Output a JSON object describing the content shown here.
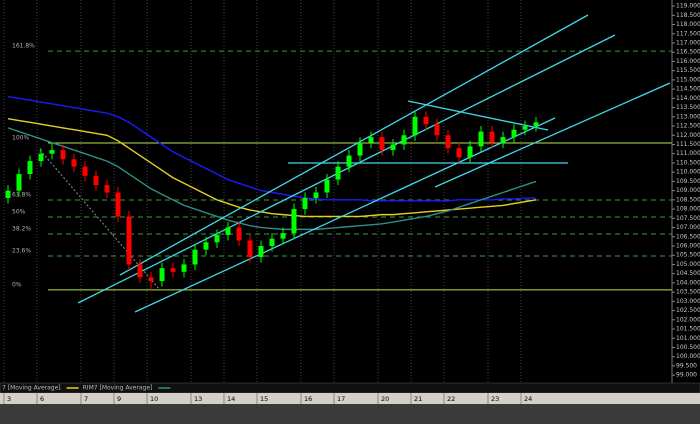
{
  "chart_data": {
    "type": "candlestick",
    "categories": [
      "3",
      null,
      null,
      "6",
      null,
      null,
      null,
      "7",
      null,
      null,
      "9",
      null,
      null,
      "10",
      null,
      null,
      null,
      "13",
      null,
      null,
      "14",
      null,
      null,
      "15",
      null,
      null,
      null,
      "16",
      null,
      null,
      "17",
      null,
      null,
      null,
      "20",
      null,
      null,
      "21",
      null,
      null,
      "22",
      null,
      null,
      null,
      "23",
      null,
      null,
      "24",
      null
    ],
    "open": [
      108.6,
      109.0,
      109.9,
      110.6,
      111.0,
      111.2,
      110.7,
      110.3,
      109.8,
      109.3,
      108.9,
      107.6,
      105.0,
      104.3,
      104.1,
      104.8,
      104.6,
      105.0,
      105.8,
      106.2,
      106.6,
      107.0,
      106.3,
      105.4,
      106.0,
      106.4,
      106.7,
      108.0,
      108.6,
      108.9,
      109.6,
      110.3,
      110.9,
      111.6,
      111.9,
      111.2,
      111.5,
      112.0,
      113.0,
      112.6,
      112.0,
      111.3,
      110.8,
      111.4,
      112.2,
      111.6,
      111.9,
      112.3,
      112.5
    ],
    "high": [
      109.3,
      110.2,
      110.9,
      111.3,
      111.58,
      111.5,
      111.0,
      110.6,
      110.1,
      109.6,
      109.2,
      107.9,
      105.3,
      104.6,
      105.1,
      105.1,
      105.3,
      106.1,
      106.5,
      106.9,
      107.3,
      107.3,
      106.6,
      106.3,
      106.7,
      107.0,
      108.3,
      108.9,
      109.2,
      109.9,
      110.6,
      111.2,
      111.9,
      112.2,
      112.2,
      111.8,
      112.3,
      113.3,
      113.3,
      112.9,
      112.3,
      111.6,
      111.7,
      112.5,
      112.5,
      112.2,
      112.6,
      112.8,
      113.0
    ],
    "low": [
      108.3,
      108.7,
      109.6,
      110.3,
      110.7,
      110.4,
      110.0,
      109.5,
      109.0,
      108.6,
      107.3,
      104.7,
      104.0,
      103.62,
      103.8,
      104.3,
      104.3,
      104.7,
      105.5,
      105.9,
      106.3,
      106.0,
      105.1,
      105.1,
      105.7,
      106.1,
      106.4,
      107.7,
      108.3,
      108.6,
      109.3,
      110.0,
      110.6,
      111.3,
      110.9,
      110.9,
      111.2,
      111.7,
      112.3,
      111.7,
      111.0,
      110.5,
      110.5,
      111.1,
      111.3,
      111.3,
      111.6,
      112.0,
      112.2
    ],
    "close": [
      109.0,
      109.9,
      110.6,
      111.0,
      111.2,
      110.7,
      110.3,
      109.8,
      109.3,
      108.9,
      107.6,
      105.0,
      104.3,
      104.1,
      104.8,
      104.6,
      105.0,
      105.8,
      106.2,
      106.6,
      107.0,
      106.3,
      105.4,
      106.0,
      106.4,
      106.7,
      108.0,
      108.6,
      108.9,
      109.6,
      110.3,
      110.9,
      111.6,
      111.9,
      111.2,
      111.5,
      112.0,
      113.0,
      112.6,
      112.0,
      111.3,
      110.8,
      111.4,
      112.2,
      111.6,
      111.9,
      112.3,
      112.5,
      112.7
    ],
    "up_color": "#00ff00",
    "down_color": "#ff0000",
    "series": [
      {
        "color": "#1a1aff",
        "values": [
          114.1,
          114.0,
          113.9,
          113.8,
          113.7,
          113.6,
          113.5,
          113.4,
          113.3,
          113.2,
          113.0,
          112.7,
          112.3,
          111.9,
          111.5,
          111.1,
          110.8,
          110.5,
          110.2,
          109.9,
          109.6,
          109.4,
          109.2,
          109.0,
          108.9,
          108.8,
          108.7,
          108.6,
          108.55,
          108.5,
          108.5,
          108.5,
          108.5,
          108.45,
          108.45,
          108.45,
          108.45,
          108.45,
          108.45,
          108.45,
          108.45,
          108.5,
          108.5,
          108.5,
          108.5,
          108.55,
          108.55,
          108.6,
          108.6
        ]
      },
      {
        "name": "7 [Moving Average]",
        "color": "#e6d21e",
        "values": [
          112.9,
          112.8,
          112.7,
          112.6,
          112.5,
          112.4,
          112.3,
          112.2,
          112.1,
          112.0,
          111.7,
          111.3,
          110.9,
          110.5,
          110.1,
          109.7,
          109.4,
          109.1,
          108.8,
          108.5,
          108.3,
          108.1,
          107.95,
          107.85,
          107.75,
          107.7,
          107.65,
          107.6,
          107.6,
          107.6,
          107.6,
          107.6,
          107.6,
          107.65,
          107.7,
          107.7,
          107.75,
          107.8,
          107.85,
          107.9,
          107.95,
          108.0,
          108.05,
          108.1,
          108.15,
          108.2,
          108.3,
          108.4,
          108.5
        ]
      },
      {
        "name": "RIM7 [Moving Average]",
        "color": "#2f8f86",
        "values": [
          112.4,
          112.2,
          112.0,
          111.8,
          111.6,
          111.4,
          111.2,
          111.0,
          110.8,
          110.6,
          110.3,
          109.9,
          109.5,
          109.1,
          108.8,
          108.5,
          108.2,
          108.0,
          107.8,
          107.6,
          107.4,
          107.25,
          107.1,
          107.0,
          106.95,
          106.9,
          106.9,
          106.9,
          106.9,
          106.95,
          107.0,
          107.05,
          107.1,
          107.15,
          107.2,
          107.3,
          107.4,
          107.5,
          107.6,
          107.75,
          107.9,
          108.1,
          108.3,
          108.5,
          108.7,
          108.9,
          109.1,
          109.3,
          109.5
        ]
      }
    ],
    "fib_levels": [
      {
        "label": "161.8%",
        "value": 116.56,
        "color": "#3c9a3c",
        "dashed": true
      },
      {
        "label": "100%",
        "value": 111.58,
        "color": "#b4e650",
        "dashed": false
      },
      {
        "label": "61.8%",
        "value": 108.49,
        "color": "#3c9a3c",
        "dashed": true
      },
      {
        "label": "50%",
        "value": 107.57,
        "color": "#3c9a3c",
        "dashed": true
      },
      {
        "label": "38.2%",
        "value": 106.65,
        "color": "#3c9a3c",
        "dashed": true
      },
      {
        "label": "23.6%",
        "value": 105.46,
        "color": "#3c9a3c",
        "dashed": true
      },
      {
        "label": "0%",
        "value": 103.62,
        "color": "#b4e650",
        "dashed": false
      }
    ],
    "ylim": [
      98.63,
      119.33
    ],
    "yticks": [
      {
        "value": 119.0,
        "label": "119.000"
      },
      {
        "value": 118.5,
        "label": "118.500"
      },
      {
        "value": 118.0,
        "label": "118.000"
      },
      {
        "value": 117.5,
        "label": "117.500"
      },
      {
        "value": 117.0,
        "label": "117.000"
      },
      {
        "value": 116.5,
        "label": "116.500"
      },
      {
        "value": 116.0,
        "label": "116.000"
      },
      {
        "value": 115.5,
        "label": "115.500"
      },
      {
        "value": 115.0,
        "label": "115.000"
      },
      {
        "value": 114.5,
        "label": "114.500"
      },
      {
        "value": 114.0,
        "label": "114.000"
      },
      {
        "value": 113.5,
        "label": "113.500"
      },
      {
        "value": 113.0,
        "label": "113.000"
      },
      {
        "value": 112.5,
        "label": "112.500"
      },
      {
        "value": 112.0,
        "label": "112.000"
      },
      {
        "value": 111.5,
        "label": "111.500"
      },
      {
        "value": 111.0,
        "label": "111.000"
      },
      {
        "value": 110.5,
        "label": "110.500"
      },
      {
        "value": 110.0,
        "label": "110.000"
      },
      {
        "value": 109.5,
        "label": "109.500"
      },
      {
        "value": 109.0,
        "label": "109.000"
      },
      {
        "value": 108.5,
        "label": "108.500"
      },
      {
        "value": 108.0,
        "label": "108.000"
      },
      {
        "value": 107.5,
        "label": "107.500"
      },
      {
        "value": 107.0,
        "label": "107.000"
      },
      {
        "value": 106.5,
        "label": "106.500"
      },
      {
        "value": 106.0,
        "label": "106.000"
      },
      {
        "value": 105.5,
        "label": "105.500"
      },
      {
        "value": 105.0,
        "label": "105.000"
      },
      {
        "value": 104.5,
        "label": "104.500"
      },
      {
        "value": 104.0,
        "label": "104.000"
      },
      {
        "value": 103.5,
        "label": "103.500"
      },
      {
        "value": 103.0,
        "label": "103.000"
      },
      {
        "value": 102.5,
        "label": "102.500"
      },
      {
        "value": 102.0,
        "label": "102.000"
      },
      {
        "value": 101.5,
        "label": "101.500"
      },
      {
        "value": 101.0,
        "label": "101.000"
      },
      {
        "value": 100.5,
        "label": "100.500"
      },
      {
        "value": 100.0,
        "label": "100.000"
      },
      {
        "value": 99.5,
        "label": "99.500"
      },
      {
        "value": 99.0,
        "label": "99.000"
      }
    ]
  }
}
